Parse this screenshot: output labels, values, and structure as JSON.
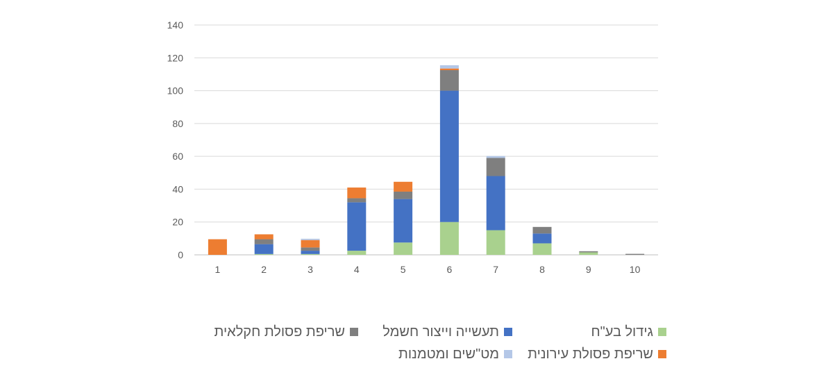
{
  "chart_data": {
    "type": "bar",
    "stacked": true,
    "categories": [
      "1",
      "2",
      "3",
      "4",
      "5",
      "6",
      "7",
      "8",
      "9",
      "10"
    ],
    "ylim": [
      0,
      140
    ],
    "yticks": [
      0,
      20,
      40,
      60,
      80,
      100,
      120,
      140
    ],
    "grid": true,
    "legend_position": "bottom",
    "series": [
      {
        "name": "גידול בע\"ח",
        "color": "#A9D18E",
        "values": [
          0,
          0.5,
          0.5,
          2.5,
          7.5,
          20,
          15,
          7,
          1.5,
          0
        ]
      },
      {
        "name": "תעשייה וייצור חשמל",
        "color": "#4472C4",
        "values": [
          0,
          6,
          2,
          29.5,
          26.5,
          80,
          33,
          6,
          0,
          0
        ]
      },
      {
        "name": "שריפת פסולת חקלאית",
        "color": "#7F7F7F",
        "values": [
          0,
          3,
          2,
          2.5,
          4.5,
          12.5,
          11,
          4,
          0.7,
          0.6
        ]
      },
      {
        "name": "שריפת פסולת עירונית",
        "color": "#ED7D31",
        "values": [
          9.5,
          3,
          4.5,
          6.5,
          6,
          1,
          0,
          0,
          0,
          0
        ]
      },
      {
        "name": "מט\"שים ומטמנות",
        "color": "#B4C7E7",
        "values": [
          0,
          0,
          0.8,
          0,
          0,
          2,
          1.2,
          0,
          0,
          0
        ]
      }
    ]
  }
}
